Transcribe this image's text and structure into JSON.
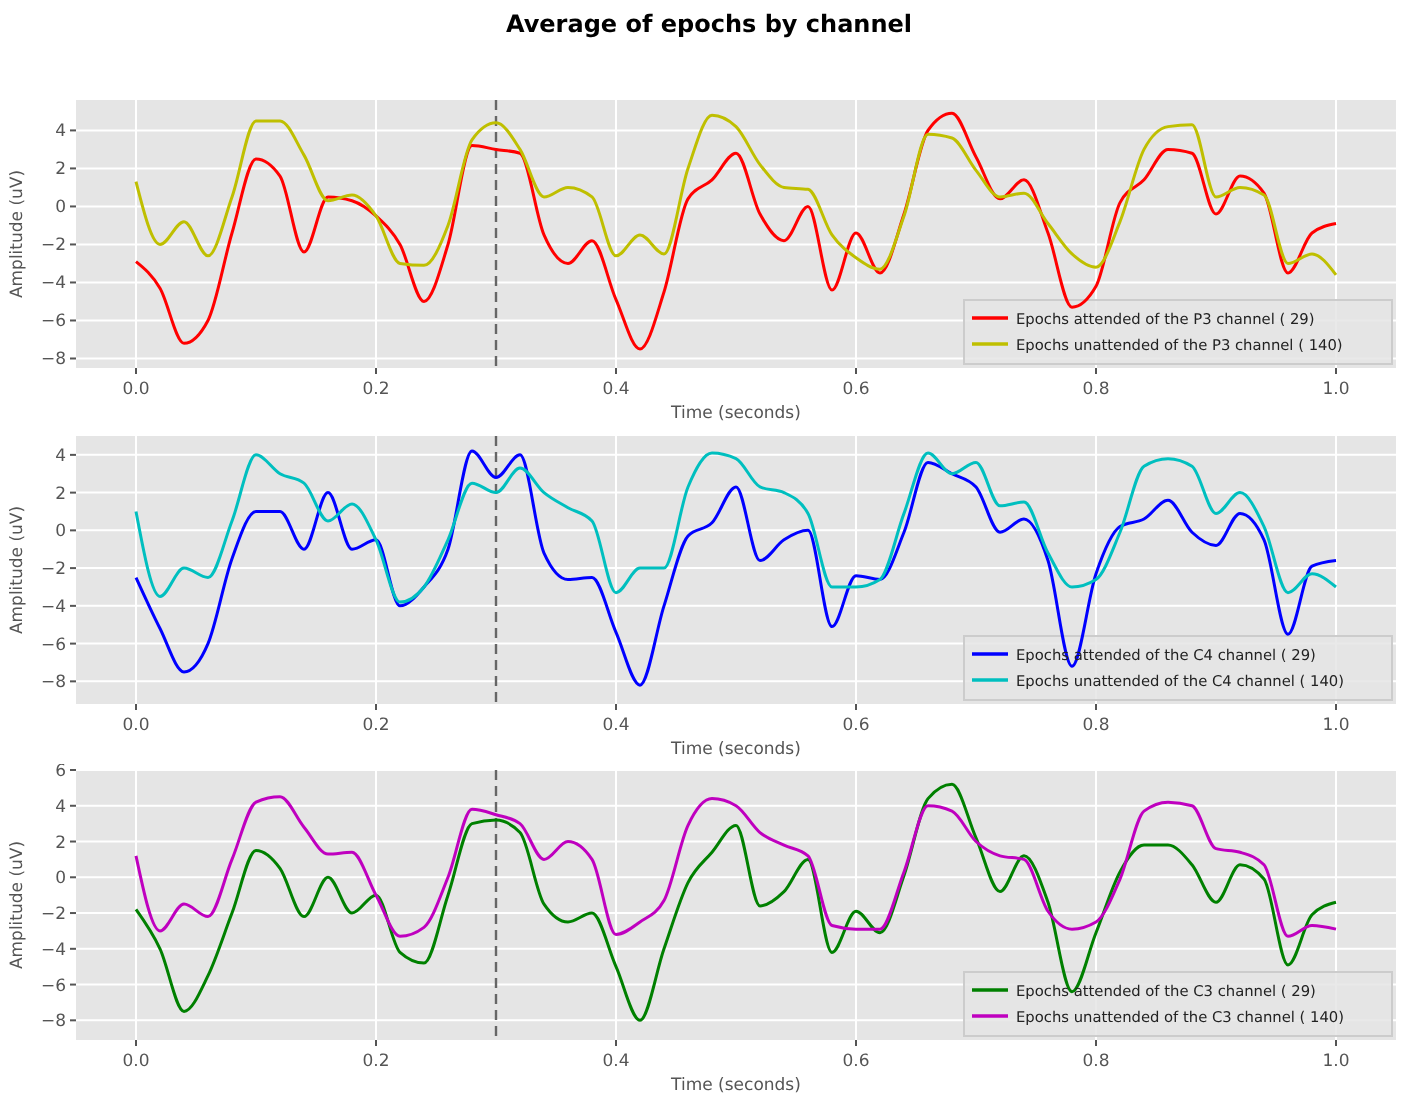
{
  "chart_data": [
    {
      "type": "line",
      "title": "Average of epochs by channel",
      "xlabel": "Time (seconds)",
      "ylabel": "Amplitude (uV)",
      "legend": "bottom right",
      "grid": true,
      "line_style": "solid",
      "x": [
        0,
        0.02,
        0.04,
        0.06,
        0.08,
        0.1,
        0.12,
        0.14,
        0.16,
        0.18,
        0.2,
        0.22,
        0.24,
        0.26,
        0.28,
        0.3,
        0.32,
        0.34,
        0.36,
        0.38,
        0.4,
        0.42,
        0.44,
        0.46,
        0.48,
        0.5,
        0.52,
        0.54,
        0.56,
        0.58,
        0.6,
        0.62,
        0.64,
        0.66,
        0.68,
        0.7,
        0.72,
        0.74,
        0.76,
        0.78,
        0.8,
        0.82,
        0.84,
        0.86,
        0.88,
        0.9,
        0.92,
        0.94,
        0.96,
        0.98,
        1
      ],
      "xlim": [
        -0.05,
        1.05
      ],
      "xticks": [
        {
          "value": 0,
          "label": "0.0"
        },
        {
          "value": 0.2,
          "label": "0.2"
        },
        {
          "value": 0.4,
          "label": "0.4"
        },
        {
          "value": 0.6,
          "label": "0.6"
        },
        {
          "value": 0.8,
          "label": "0.8"
        },
        {
          "value": 1,
          "label": "1.0"
        }
      ],
      "ylim": [
        -8.5,
        5.6
      ],
      "yticks": [
        {
          "value": -8,
          "label": "−8"
        },
        {
          "value": -6,
          "label": "−6"
        },
        {
          "value": -4,
          "label": "−4"
        },
        {
          "value": -2,
          "label": "−2"
        },
        0,
        2,
        4
      ],
      "ref_lines": [
        {
          "axis": "x",
          "value": 0.3,
          "color": "#666666",
          "line_style": "dashed"
        }
      ],
      "series": [
        {
          "name": "Epochs attended of the P3 channel ( 29)",
          "color": "#ff0000",
          "values": [
            -2.9,
            -4.3,
            -7.2,
            -6.0,
            -1.4,
            2.5,
            1.6,
            -2.4,
            0.5,
            0.3,
            -0.5,
            -2.0,
            -5.0,
            -2.0,
            3.2,
            3.0,
            2.8,
            -1.5,
            -3.0,
            -1.8,
            -4.9,
            -7.5,
            -4.5,
            0.4,
            1.4,
            2.8,
            -0.4,
            -1.8,
            0,
            -4.4,
            -1.4,
            -3.5,
            -0.4,
            4.0,
            4.9,
            2.6,
            0.4,
            1.4,
            -1.4,
            -5.3,
            -4.2,
            0.2,
            1.4,
            3.0,
            2.8,
            -0.4,
            1.6,
            0.7,
            -3.5,
            -1.4,
            -0.9
          ]
        },
        {
          "name": "Epochs unattended of the P3 channel ( 140)",
          "color": "#bfbf00",
          "values": [
            1.3,
            -2.0,
            -0.8,
            -2.6,
            0.5,
            4.5,
            4.5,
            2.7,
            0.3,
            0.6,
            -0.5,
            -3.0,
            -3.1,
            -1.0,
            3.5,
            4.4,
            3.0,
            0.5,
            1.0,
            0.5,
            -2.6,
            -1.5,
            -2.5,
            2.0,
            4.8,
            4.2,
            2.2,
            1.0,
            0.9,
            -1.5,
            -2.7,
            -3.3,
            -0.5,
            3.8,
            3.6,
            1.9,
            0.5,
            0.7,
            -0.9,
            -2.5,
            -3.2,
            -0.8,
            3.0,
            4.2,
            4.3,
            0.5,
            1.0,
            0.6,
            -3.0,
            -2.5,
            -3.6
          ]
        }
      ]
    },
    {
      "type": "line",
      "xlabel": "Time (seconds)",
      "ylabel": "Amplitude (uV)",
      "legend": "bottom right",
      "grid": true,
      "line_style": "solid",
      "x": [
        0,
        0.02,
        0.04,
        0.06,
        0.08,
        0.1,
        0.12,
        0.14,
        0.16,
        0.18,
        0.2,
        0.22,
        0.24,
        0.26,
        0.28,
        0.3,
        0.32,
        0.34,
        0.36,
        0.38,
        0.4,
        0.42,
        0.44,
        0.46,
        0.48,
        0.5,
        0.52,
        0.54,
        0.56,
        0.58,
        0.6,
        0.62,
        0.64,
        0.66,
        0.68,
        0.7,
        0.72,
        0.74,
        0.76,
        0.78,
        0.8,
        0.82,
        0.84,
        0.86,
        0.88,
        0.9,
        0.92,
        0.94,
        0.96,
        0.98,
        1
      ],
      "xlim": [
        -0.05,
        1.05
      ],
      "xticks": [
        {
          "value": 0,
          "label": "0.0"
        },
        {
          "value": 0.2,
          "label": "0.2"
        },
        {
          "value": 0.4,
          "label": "0.4"
        },
        {
          "value": 0.6,
          "label": "0.6"
        },
        {
          "value": 0.8,
          "label": "0.8"
        },
        {
          "value": 1,
          "label": "1.0"
        }
      ],
      "ylim": [
        -9.2,
        5.0
      ],
      "yticks": [
        {
          "value": -8,
          "label": "−8"
        },
        {
          "value": -6,
          "label": "−6"
        },
        {
          "value": -4,
          "label": "−4"
        },
        {
          "value": -2,
          "label": "−2"
        },
        0,
        2,
        4
      ],
      "ref_lines": [
        {
          "axis": "x",
          "value": 0.3,
          "color": "#666666",
          "line_style": "dashed"
        }
      ],
      "series": [
        {
          "name": "Epochs attended of the C4 channel ( 29)",
          "color": "#0000ff",
          "values": [
            -2.5,
            -5.2,
            -7.5,
            -6.0,
            -1.5,
            1.0,
            1.0,
            -1.0,
            2.0,
            -1.0,
            -0.5,
            -4.0,
            -3.0,
            -1.0,
            4.2,
            2.8,
            4.0,
            -1.2,
            -2.6,
            -2.5,
            -5.4,
            -8.2,
            -4.0,
            -0.3,
            0.4,
            2.3,
            -1.6,
            -0.5,
            0,
            -5.1,
            -2.4,
            -2.6,
            -0.1,
            3.6,
            3.0,
            2.3,
            -0.1,
            0.6,
            -1.6,
            -7.2,
            -2.3,
            0.2,
            0.6,
            1.6,
            -0.1,
            -0.8,
            0.9,
            -0.5,
            -5.5,
            -1.9,
            -1.6
          ]
        },
        {
          "name": "Epochs unattended of the C4 channel ( 140)",
          "color": "#00bfbf",
          "values": [
            1.0,
            -3.5,
            -2.0,
            -2.5,
            0.5,
            4.0,
            3.0,
            2.5,
            0.5,
            1.4,
            -0.5,
            -3.8,
            -3.0,
            -0.5,
            2.5,
            2.0,
            3.3,
            2.0,
            1.2,
            0.5,
            -3.3,
            -2.0,
            -2.0,
            2.3,
            4.1,
            3.8,
            2.3,
            2.0,
            0.9,
            -3.0,
            -3.0,
            -2.6,
            0.9,
            4.1,
            3.0,
            3.6,
            1.3,
            1.5,
            -1.2,
            -3.0,
            -2.6,
            -0.1,
            3.4,
            3.8,
            3.4,
            0.9,
            2.0,
            0.2,
            -3.3,
            -2.3,
            -3.0
          ]
        }
      ]
    },
    {
      "type": "line",
      "xlabel": "Time (seconds)",
      "ylabel": "Amplitude (uV)",
      "legend": "bottom right",
      "grid": true,
      "line_style": "solid",
      "x": [
        0,
        0.02,
        0.04,
        0.06,
        0.08,
        0.1,
        0.12,
        0.14,
        0.16,
        0.18,
        0.2,
        0.22,
        0.24,
        0.26,
        0.28,
        0.3,
        0.32,
        0.34,
        0.36,
        0.38,
        0.4,
        0.42,
        0.44,
        0.46,
        0.48,
        0.5,
        0.52,
        0.54,
        0.56,
        0.58,
        0.6,
        0.62,
        0.64,
        0.66,
        0.68,
        0.7,
        0.72,
        0.74,
        0.76,
        0.78,
        0.8,
        0.82,
        0.84,
        0.86,
        0.88,
        0.9,
        0.92,
        0.94,
        0.96,
        0.98,
        1
      ],
      "xlim": [
        -0.05,
        1.05
      ],
      "xticks": [
        {
          "value": 0,
          "label": "0.0"
        },
        {
          "value": 0.2,
          "label": "0.2"
        },
        {
          "value": 0.4,
          "label": "0.4"
        },
        {
          "value": 0.6,
          "label": "0.6"
        },
        {
          "value": 0.8,
          "label": "0.8"
        },
        {
          "value": 1,
          "label": "1.0"
        }
      ],
      "ylim": [
        -9.1,
        6.0
      ],
      "yticks": [
        {
          "value": -8,
          "label": "−8"
        },
        {
          "value": -6,
          "label": "−6"
        },
        {
          "value": -4,
          "label": "−4"
        },
        {
          "value": -2,
          "label": "−2"
        },
        0,
        2,
        4,
        6
      ],
      "ref_lines": [
        {
          "axis": "x",
          "value": 0.3,
          "color": "#666666",
          "line_style": "dashed"
        }
      ],
      "series": [
        {
          "name": "Epochs attended of the C3 channel ( 29)",
          "color": "#008000",
          "values": [
            -1.8,
            -4.0,
            -7.5,
            -5.5,
            -2.0,
            1.5,
            0.5,
            -2.2,
            0,
            -2.0,
            -1.0,
            -4.2,
            -4.8,
            -1.0,
            3.0,
            3.2,
            2.5,
            -1.5,
            -2.5,
            -2.0,
            -5.0,
            -8.0,
            -4.0,
            -0.3,
            1.4,
            2.9,
            -1.6,
            -0.8,
            1.0,
            -4.2,
            -1.9,
            -3.1,
            0.1,
            4.4,
            5.2,
            2.2,
            -0.8,
            1.2,
            -1.4,
            -6.4,
            -3.1,
            0.3,
            1.8,
            1.8,
            0.7,
            -1.4,
            0.7,
            -0.1,
            -4.9,
            -2.1,
            -1.4
          ]
        },
        {
          "name": "Epochs unattended of the C3 channel ( 140)",
          "color": "#bf00bf",
          "values": [
            1.2,
            -3.0,
            -1.5,
            -2.2,
            1.0,
            4.2,
            4.5,
            2.8,
            1.3,
            1.4,
            -1.0,
            -3.3,
            -2.8,
            0,
            3.8,
            3.5,
            3.0,
            1.0,
            2.0,
            1.0,
            -3.2,
            -2.5,
            -1.3,
            2.9,
            4.4,
            4.0,
            2.5,
            1.8,
            1.2,
            -2.7,
            -2.9,
            -2.9,
            0.3,
            4.0,
            3.7,
            2.0,
            1.2,
            1.0,
            -1.9,
            -2.9,
            -2.5,
            -0.1,
            3.7,
            4.2,
            4.0,
            1.6,
            1.4,
            0.7,
            -3.3,
            -2.7,
            -2.9
          ]
        }
      ]
    }
  ]
}
